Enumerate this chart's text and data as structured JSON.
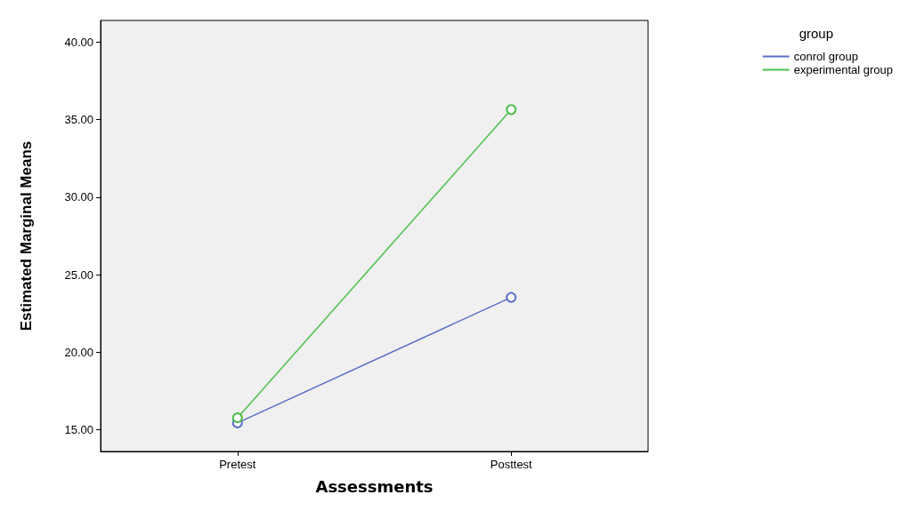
{
  "chart_data": {
    "type": "line",
    "xlabel": "Assessments",
    "ylabel": "Estimated Marginal Means",
    "legend_title": "group",
    "categories": [
      "Pretest",
      "Posttest"
    ],
    "series": [
      {
        "name": "conrol group",
        "color": "#5b6ec8",
        "values": [
          15.44,
          23.54
        ]
      },
      {
        "name": "experimental group",
        "color": "#4cc04c",
        "values": [
          15.77,
          35.65
        ]
      }
    ],
    "ylim": [
      13.6,
      41.4
    ],
    "yticks": [
      {
        "value": 15,
        "label": "15.00"
      },
      {
        "value": 20,
        "label": "20.00"
      },
      {
        "value": 25,
        "label": "25.00"
      },
      {
        "value": 30,
        "label": "30.00"
      },
      {
        "value": 35,
        "label": "35.00"
      },
      {
        "value": 40,
        "label": "40.00"
      }
    ],
    "grid": false,
    "legend": "top right",
    "marker": "circle",
    "line_style": "solid"
  }
}
